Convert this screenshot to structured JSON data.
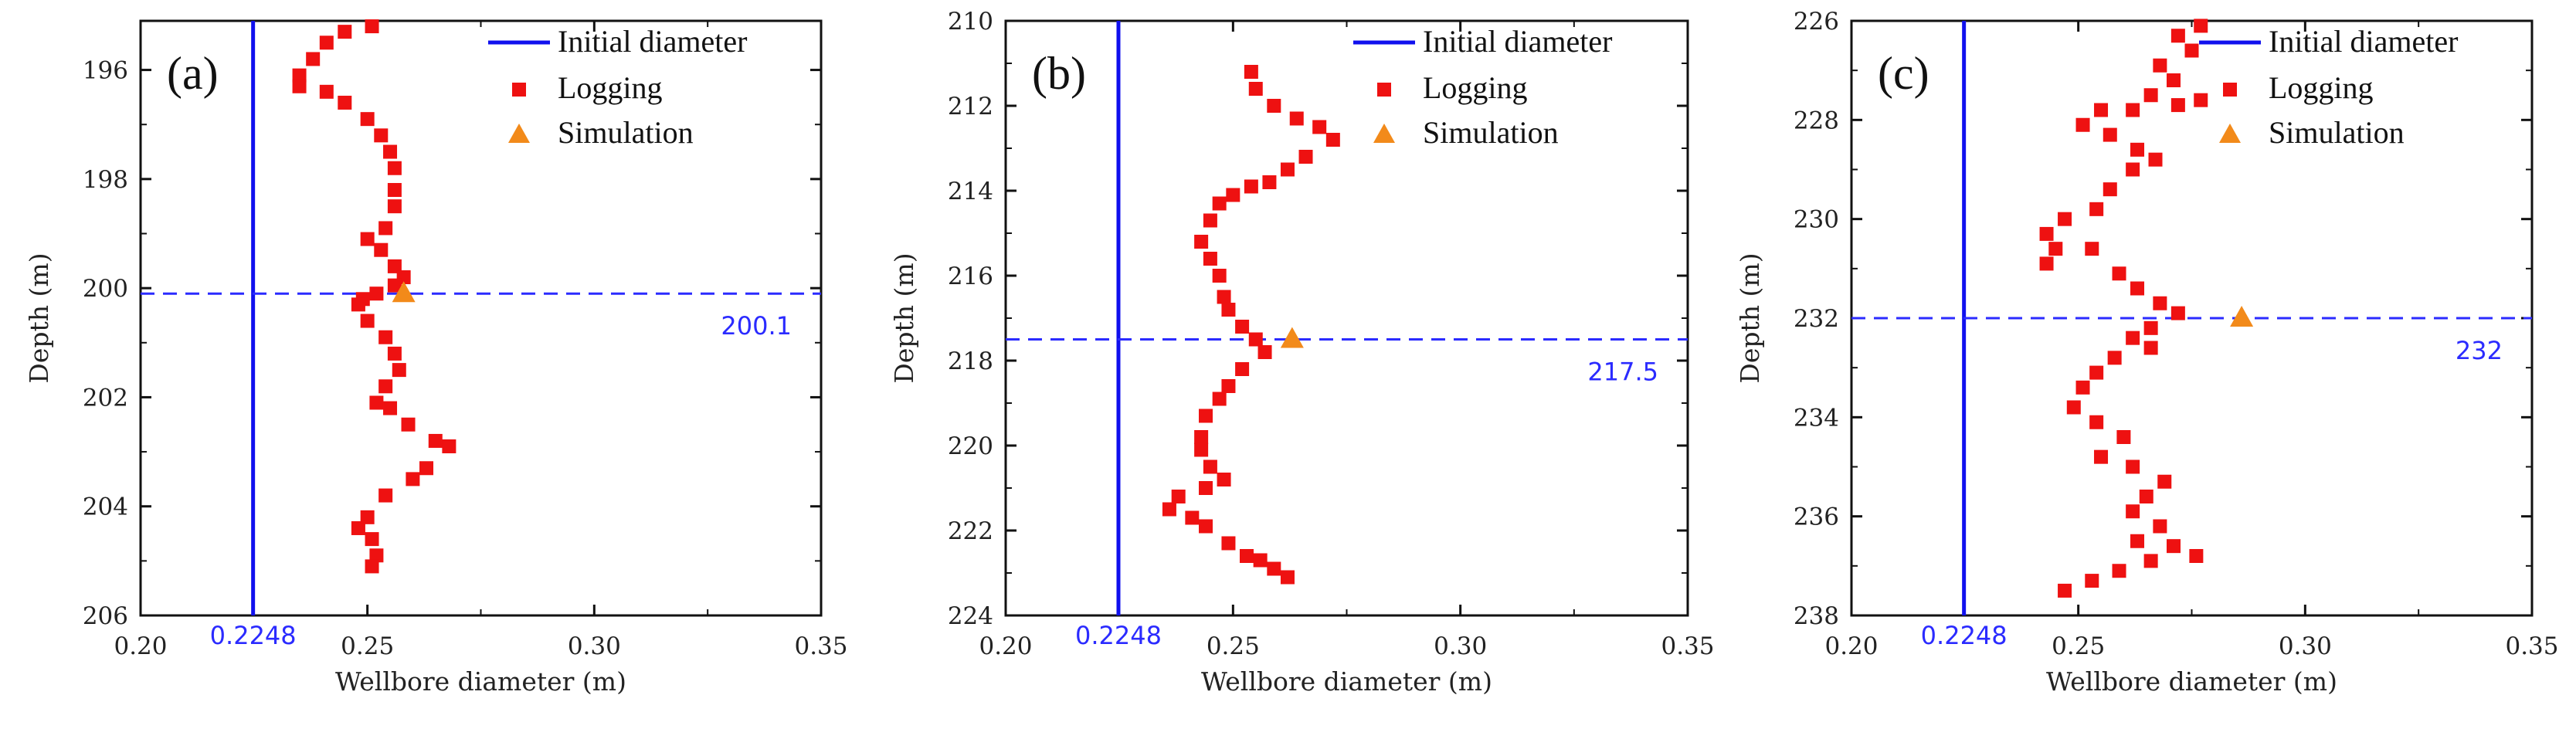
{
  "colors": {
    "initial": "#1010ee",
    "logging": "#ee1111",
    "simulation": "#f28a1a",
    "annotation": "#2b2bff",
    "axis": "#111111"
  },
  "chart_data": [
    {
      "type": "scatter",
      "panel_label": "(a)",
      "xlabel": "Wellbore diameter (m)",
      "ylabel": "Depth (m)",
      "xlim": [
        0.2,
        0.35
      ],
      "ylim": [
        195.1,
        206
      ],
      "y_inverted": true,
      "xticks": [
        0.2,
        0.25,
        0.3,
        0.35
      ],
      "xtick_labels": [
        "0.20",
        "0.25",
        "0.30",
        "0.35"
      ],
      "yticks": [
        196,
        198,
        200,
        202,
        204,
        206
      ],
      "ytick_labels": [
        "196",
        "198",
        "200",
        "202",
        "204",
        "206"
      ],
      "legend": {
        "initial": "Initial diameter",
        "logging": "Logging",
        "simulation": "Simulation"
      },
      "initial_diameter": 0.2248,
      "initial_label": "0.2248",
      "depth_line": 200.1,
      "depth_label": "200.1",
      "simulation": {
        "x": 0.258,
        "y": 200.1
      },
      "logging": [
        [
          0.251,
          195.2
        ],
        [
          0.245,
          195.3
        ],
        [
          0.241,
          195.5
        ],
        [
          0.238,
          195.8
        ],
        [
          0.235,
          196.1
        ],
        [
          0.235,
          196.3
        ],
        [
          0.241,
          196.4
        ],
        [
          0.245,
          196.6
        ],
        [
          0.25,
          196.9
        ],
        [
          0.253,
          197.2
        ],
        [
          0.255,
          197.5
        ],
        [
          0.256,
          197.8
        ],
        [
          0.256,
          198.2
        ],
        [
          0.256,
          198.5
        ],
        [
          0.254,
          198.9
        ],
        [
          0.25,
          199.1
        ],
        [
          0.253,
          199.3
        ],
        [
          0.256,
          199.6
        ],
        [
          0.258,
          199.8
        ],
        [
          0.256,
          199.95
        ],
        [
          0.252,
          200.1
        ],
        [
          0.249,
          200.2
        ],
        [
          0.248,
          200.3
        ],
        [
          0.25,
          200.6
        ],
        [
          0.254,
          200.9
        ],
        [
          0.256,
          201.2
        ],
        [
          0.257,
          201.5
        ],
        [
          0.254,
          201.8
        ],
        [
          0.252,
          202.1
        ],
        [
          0.255,
          202.2
        ],
        [
          0.259,
          202.5
        ],
        [
          0.265,
          202.8
        ],
        [
          0.268,
          202.9
        ],
        [
          0.263,
          203.3
        ],
        [
          0.26,
          203.5
        ],
        [
          0.254,
          203.8
        ],
        [
          0.25,
          204.2
        ],
        [
          0.248,
          204.4
        ],
        [
          0.251,
          204.6
        ],
        [
          0.252,
          204.9
        ],
        [
          0.251,
          205.1
        ]
      ]
    },
    {
      "type": "scatter",
      "panel_label": "(b)",
      "xlabel": "Wellbore diameter (m)",
      "ylabel": "Depth (m)",
      "xlim": [
        0.2,
        0.35
      ],
      "ylim": [
        210,
        224
      ],
      "y_inverted": true,
      "xticks": [
        0.2,
        0.25,
        0.3,
        0.35
      ],
      "xtick_labels": [
        "0.20",
        "0.25",
        "0.30",
        "0.35"
      ],
      "yticks": [
        210,
        212,
        214,
        216,
        218,
        220,
        222,
        224
      ],
      "ytick_labels": [
        "210",
        "212",
        "214",
        "216",
        "218",
        "220",
        "222",
        "224"
      ],
      "legend": {
        "initial": "Initial diameter",
        "logging": "Logging",
        "simulation": "Simulation"
      },
      "initial_diameter": 0.2248,
      "initial_label": "0.2248",
      "depth_line": 217.5,
      "depth_label": "217.5",
      "simulation": {
        "x": 0.263,
        "y": 217.5
      },
      "logging": [
        [
          0.254,
          211.2
        ],
        [
          0.255,
          211.6
        ],
        [
          0.259,
          212.0
        ],
        [
          0.264,
          212.3
        ],
        [
          0.269,
          212.5
        ],
        [
          0.272,
          212.8
        ],
        [
          0.266,
          213.2
        ],
        [
          0.262,
          213.5
        ],
        [
          0.258,
          213.8
        ],
        [
          0.254,
          213.9
        ],
        [
          0.25,
          214.1
        ],
        [
          0.247,
          214.3
        ],
        [
          0.245,
          214.7
        ],
        [
          0.243,
          215.2
        ],
        [
          0.245,
          215.6
        ],
        [
          0.247,
          216.0
        ],
        [
          0.248,
          216.5
        ],
        [
          0.249,
          216.8
        ],
        [
          0.252,
          217.2
        ],
        [
          0.255,
          217.5
        ],
        [
          0.257,
          217.8
        ],
        [
          0.252,
          218.2
        ],
        [
          0.249,
          218.6
        ],
        [
          0.247,
          218.9
        ],
        [
          0.244,
          219.3
        ],
        [
          0.243,
          219.8
        ],
        [
          0.243,
          220.1
        ],
        [
          0.245,
          220.5
        ],
        [
          0.248,
          220.8
        ],
        [
          0.244,
          221.0
        ],
        [
          0.238,
          221.2
        ],
        [
          0.236,
          221.5
        ],
        [
          0.241,
          221.7
        ],
        [
          0.244,
          221.9
        ],
        [
          0.249,
          222.3
        ],
        [
          0.253,
          222.6
        ],
        [
          0.256,
          222.7
        ],
        [
          0.259,
          222.9
        ],
        [
          0.262,
          223.1
        ]
      ]
    },
    {
      "type": "scatter",
      "panel_label": "(c)",
      "xlabel": "Wellbore diameter (m)",
      "ylabel": "Depth (m)",
      "xlim": [
        0.2,
        0.35
      ],
      "ylim": [
        226,
        238
      ],
      "y_inverted": true,
      "xticks": [
        0.2,
        0.25,
        0.3,
        0.35
      ],
      "xtick_labels": [
        "0.20",
        "0.25",
        "0.30",
        "0.35"
      ],
      "yticks": [
        226,
        228,
        230,
        232,
        234,
        236,
        238
      ],
      "ytick_labels": [
        "226",
        "228",
        "230",
        "232",
        "234",
        "236",
        "238"
      ],
      "legend": {
        "initial": "Initial diameter",
        "logging": "Logging",
        "simulation": "Simulation"
      },
      "initial_diameter": 0.2248,
      "initial_label": "0.2248",
      "depth_line": 232,
      "depth_label": "232",
      "simulation": {
        "x": 0.286,
        "y": 232
      },
      "logging": [
        [
          0.277,
          226.1
        ],
        [
          0.272,
          226.3
        ],
        [
          0.275,
          226.6
        ],
        [
          0.268,
          226.9
        ],
        [
          0.271,
          227.2
        ],
        [
          0.266,
          227.5
        ],
        [
          0.272,
          227.7
        ],
        [
          0.277,
          227.6
        ],
        [
          0.262,
          227.8
        ],
        [
          0.255,
          227.8
        ],
        [
          0.251,
          228.1
        ],
        [
          0.257,
          228.3
        ],
        [
          0.263,
          228.6
        ],
        [
          0.267,
          228.8
        ],
        [
          0.262,
          229.0
        ],
        [
          0.257,
          229.4
        ],
        [
          0.254,
          229.8
        ],
        [
          0.247,
          230.0
        ],
        [
          0.243,
          230.3
        ],
        [
          0.245,
          230.6
        ],
        [
          0.243,
          230.9
        ],
        [
          0.253,
          230.6
        ],
        [
          0.259,
          231.1
        ],
        [
          0.263,
          231.4
        ],
        [
          0.268,
          231.7
        ],
        [
          0.272,
          231.9
        ],
        [
          0.266,
          232.2
        ],
        [
          0.262,
          232.4
        ],
        [
          0.266,
          232.6
        ],
        [
          0.258,
          232.8
        ],
        [
          0.254,
          233.1
        ],
        [
          0.251,
          233.4
        ],
        [
          0.249,
          233.8
        ],
        [
          0.254,
          234.1
        ],
        [
          0.26,
          234.4
        ],
        [
          0.255,
          234.8
        ],
        [
          0.262,
          235.0
        ],
        [
          0.269,
          235.3
        ],
        [
          0.265,
          235.6
        ],
        [
          0.262,
          235.9
        ],
        [
          0.268,
          236.2
        ],
        [
          0.263,
          236.5
        ],
        [
          0.271,
          236.6
        ],
        [
          0.276,
          236.8
        ],
        [
          0.266,
          236.9
        ],
        [
          0.259,
          237.1
        ],
        [
          0.253,
          237.3
        ],
        [
          0.247,
          237.5
        ]
      ]
    }
  ]
}
